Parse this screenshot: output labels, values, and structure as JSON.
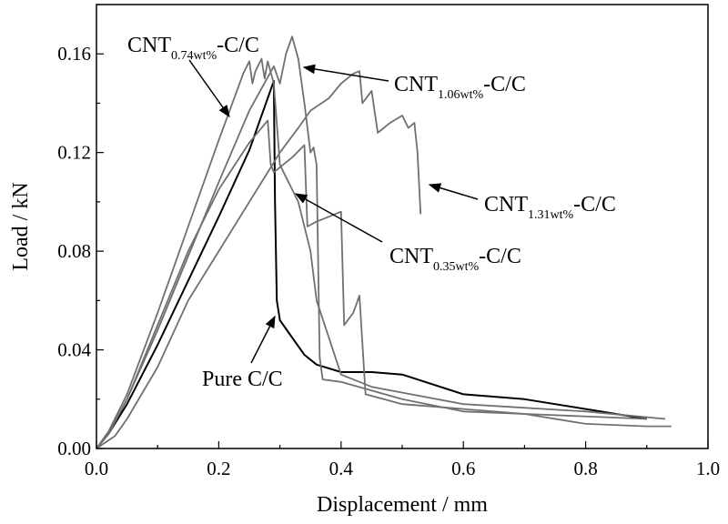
{
  "chart_data": {
    "type": "line",
    "xlabel": "Displacement / mm",
    "ylabel": "Load / kN",
    "xlim": [
      0.0,
      1.0
    ],
    "ylim": [
      0.0,
      0.18
    ],
    "x_ticks": [
      0.0,
      0.2,
      0.4,
      0.6,
      0.8,
      1.0
    ],
    "x_tick_labels": [
      "0.0",
      "0.2",
      "0.4",
      "0.6",
      "0.8",
      "1.0"
    ],
    "y_ticks": [
      0.0,
      0.04,
      0.08,
      0.12,
      0.16
    ],
    "y_tick_labels": [
      "0.00",
      "0.04",
      "0.08",
      "0.12",
      "0.16"
    ],
    "grid": false,
    "legend": "none",
    "colors": {
      "pure": "#000000",
      "cnt": "#707070"
    },
    "series": [
      {
        "id": "pure",
        "points": [
          [
            0,
            0
          ],
          [
            0.02,
            0.006
          ],
          [
            0.05,
            0.018
          ],
          [
            0.1,
            0.042
          ],
          [
            0.15,
            0.068
          ],
          [
            0.2,
            0.094
          ],
          [
            0.25,
            0.121
          ],
          [
            0.29,
            0.149
          ],
          [
            0.292,
            0.1
          ],
          [
            0.295,
            0.06
          ],
          [
            0.3,
            0.052
          ],
          [
            0.32,
            0.045
          ],
          [
            0.34,
            0.038
          ],
          [
            0.36,
            0.034
          ],
          [
            0.4,
            0.031
          ],
          [
            0.45,
            0.031
          ],
          [
            0.5,
            0.03
          ],
          [
            0.6,
            0.022
          ],
          [
            0.7,
            0.02
          ],
          [
            0.8,
            0.016
          ],
          [
            0.9,
            0.012
          ]
        ]
      },
      {
        "id": "cnt074",
        "points": [
          [
            0,
            0
          ],
          [
            0.02,
            0.007
          ],
          [
            0.05,
            0.022
          ],
          [
            0.1,
            0.055
          ],
          [
            0.15,
            0.09
          ],
          [
            0.2,
            0.125
          ],
          [
            0.24,
            0.152
          ],
          [
            0.25,
            0.157
          ],
          [
            0.255,
            0.148
          ],
          [
            0.26,
            0.153
          ],
          [
            0.27,
            0.158
          ],
          [
            0.275,
            0.15
          ],
          [
            0.28,
            0.157
          ],
          [
            0.29,
            0.148
          ],
          [
            0.3,
            0.115
          ],
          [
            0.33,
            0.1
          ],
          [
            0.35,
            0.08
          ],
          [
            0.36,
            0.06
          ],
          [
            0.4,
            0.03
          ],
          [
            0.45,
            0.025
          ],
          [
            0.6,
            0.018
          ],
          [
            0.8,
            0.015
          ],
          [
            0.93,
            0.012
          ]
        ]
      },
      {
        "id": "cnt106",
        "points": [
          [
            0,
            0
          ],
          [
            0.02,
            0.006
          ],
          [
            0.05,
            0.02
          ],
          [
            0.1,
            0.048
          ],
          [
            0.15,
            0.078
          ],
          [
            0.2,
            0.108
          ],
          [
            0.25,
            0.137
          ],
          [
            0.29,
            0.155
          ],
          [
            0.3,
            0.148
          ],
          [
            0.31,
            0.16
          ],
          [
            0.32,
            0.167
          ],
          [
            0.33,
            0.158
          ],
          [
            0.34,
            0.14
          ],
          [
            0.35,
            0.12
          ],
          [
            0.355,
            0.122
          ],
          [
            0.36,
            0.115
          ],
          [
            0.365,
            0.037
          ],
          [
            0.37,
            0.028
          ],
          [
            0.4,
            0.027
          ],
          [
            0.5,
            0.02
          ],
          [
            0.6,
            0.015
          ],
          [
            0.7,
            0.014
          ],
          [
            0.9,
            0.012
          ]
        ]
      },
      {
        "id": "cnt131",
        "points": [
          [
            0,
            0
          ],
          [
            0.03,
            0.005
          ],
          [
            0.05,
            0.012
          ],
          [
            0.1,
            0.033
          ],
          [
            0.15,
            0.06
          ],
          [
            0.2,
            0.08
          ],
          [
            0.25,
            0.1
          ],
          [
            0.28,
            0.112
          ],
          [
            0.3,
            0.12
          ],
          [
            0.33,
            0.13
          ],
          [
            0.35,
            0.137
          ],
          [
            0.38,
            0.142
          ],
          [
            0.4,
            0.148
          ],
          [
            0.42,
            0.152
          ],
          [
            0.43,
            0.153
          ],
          [
            0.435,
            0.14
          ],
          [
            0.45,
            0.145
          ],
          [
            0.46,
            0.128
          ],
          [
            0.48,
            0.132
          ],
          [
            0.5,
            0.135
          ],
          [
            0.51,
            0.13
          ],
          [
            0.52,
            0.132
          ],
          [
            0.525,
            0.12
          ],
          [
            0.53,
            0.095
          ]
        ]
      },
      {
        "id": "cnt035",
        "points": [
          [
            0,
            0
          ],
          [
            0.02,
            0.006
          ],
          [
            0.05,
            0.02
          ],
          [
            0.1,
            0.05
          ],
          [
            0.15,
            0.08
          ],
          [
            0.2,
            0.105
          ],
          [
            0.25,
            0.124
          ],
          [
            0.28,
            0.133
          ],
          [
            0.285,
            0.115
          ],
          [
            0.29,
            0.112
          ],
          [
            0.3,
            0.114
          ],
          [
            0.32,
            0.118
          ],
          [
            0.34,
            0.123
          ],
          [
            0.345,
            0.09
          ],
          [
            0.36,
            0.092
          ],
          [
            0.38,
            0.094
          ],
          [
            0.4,
            0.096
          ],
          [
            0.405,
            0.05
          ],
          [
            0.42,
            0.055
          ],
          [
            0.43,
            0.062
          ],
          [
            0.44,
            0.022
          ],
          [
            0.5,
            0.018
          ],
          [
            0.6,
            0.016
          ],
          [
            0.7,
            0.014
          ],
          [
            0.8,
            0.01
          ],
          [
            0.9,
            0.009
          ],
          [
            0.94,
            0.009
          ]
        ]
      }
    ],
    "annotations": [
      {
        "id": "cnt074",
        "base": "CNT",
        "sub": "0.74wt%",
        "suffix": "-C/C"
      },
      {
        "id": "cnt106",
        "base": "CNT",
        "sub": "1.06wt%",
        "suffix": "-C/C"
      },
      {
        "id": "cnt131",
        "base": "CNT",
        "sub": "1.31wt%",
        "suffix": "-C/C"
      },
      {
        "id": "cnt035",
        "base": "CNT",
        "sub": "0.35wt%",
        "suffix": "-C/C"
      },
      {
        "id": "pure",
        "text": "Pure C/C"
      }
    ]
  }
}
